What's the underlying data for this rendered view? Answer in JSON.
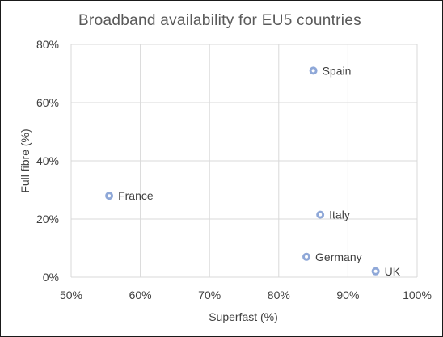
{
  "chart_data": {
    "type": "scatter",
    "title": "Broadband availability for EU5 countries",
    "xlabel": "Superfast (%)",
    "ylabel": "Full fibre (%)",
    "xlim": [
      50,
      100
    ],
    "ylim": [
      0,
      80
    ],
    "x_ticks": [
      50,
      60,
      70,
      80,
      90,
      100
    ],
    "x_tick_labels": [
      "50%",
      "60%",
      "70%",
      "80%",
      "90%",
      "100%"
    ],
    "y_ticks": [
      0,
      20,
      40,
      60,
      80
    ],
    "y_tick_labels": [
      "0%",
      "20%",
      "40%",
      "60%",
      "80%"
    ],
    "grid": true,
    "points": [
      {
        "label": "Spain",
        "x": 85,
        "y": 71
      },
      {
        "label": "France",
        "x": 55.5,
        "y": 28
      },
      {
        "label": "Italy",
        "x": 86,
        "y": 21.5
      },
      {
        "label": "Germany",
        "x": 84,
        "y": 7
      },
      {
        "label": "UK",
        "x": 94,
        "y": 2
      }
    ],
    "marker_color": "#8fa8d8"
  }
}
